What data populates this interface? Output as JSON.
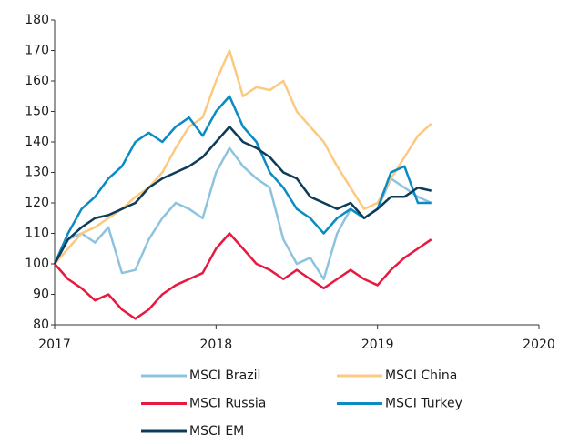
{
  "chart_data": {
    "type": "line",
    "x": [
      2017,
      2017.083,
      2017.167,
      2017.25,
      2017.333,
      2017.417,
      2017.5,
      2017.583,
      2017.667,
      2017.75,
      2017.833,
      2017.917,
      2018,
      2018.083,
      2018.167,
      2018.25,
      2018.333,
      2018.417,
      2018.5,
      2018.583,
      2018.667,
      2018.75,
      2018.833,
      2018.917,
      2019,
      2019.083,
      2019.167,
      2019.25,
      2019.333
    ],
    "series": [
      {
        "name": "MSCI Brazil",
        "color": "#8ec3e0",
        "values": [
          100,
          108,
          110,
          107,
          112,
          97,
          98,
          108,
          115,
          120,
          118,
          115,
          130,
          138,
          132,
          128,
          125,
          108,
          100,
          102,
          95,
          110,
          118,
          115,
          118,
          128,
          125,
          122,
          120
        ]
      },
      {
        "name": "MSCI China",
        "color": "#fcc980",
        "values": [
          100,
          105,
          110,
          112,
          115,
          118,
          122,
          125,
          130,
          138,
          145,
          148,
          160,
          170,
          155,
          158,
          157,
          160,
          150,
          145,
          140,
          132,
          125,
          118,
          120,
          128,
          135,
          142,
          146
        ]
      },
      {
        "name": "MSCI Russia",
        "color": "#e8193f",
        "values": [
          100,
          95,
          92,
          88,
          90,
          85,
          82,
          85,
          90,
          93,
          95,
          97,
          105,
          110,
          105,
          100,
          98,
          95,
          98,
          95,
          92,
          95,
          98,
          95,
          93,
          98,
          102,
          105,
          108
        ]
      },
      {
        "name": "MSCI Turkey",
        "color": "#0a8bc2",
        "values": [
          100,
          110,
          118,
          122,
          128,
          132,
          140,
          143,
          140,
          145,
          148,
          142,
          150,
          155,
          145,
          140,
          130,
          125,
          118,
          115,
          110,
          115,
          118,
          115,
          118,
          130,
          132,
          120,
          120
        ]
      },
      {
        "name": "MSCI EM",
        "color": "#0d3c5a",
        "values": [
          100,
          108,
          112,
          115,
          116,
          118,
          120,
          125,
          128,
          130,
          132,
          135,
          140,
          145,
          140,
          138,
          135,
          130,
          128,
          122,
          120,
          118,
          120,
          115,
          118,
          122,
          122,
          125,
          124
        ]
      }
    ],
    "xlim": [
      2017,
      2020
    ],
    "xticks": [
      2017,
      2018,
      2019,
      2020
    ],
    "ylim": [
      80,
      180
    ],
    "yticks": [
      80,
      90,
      100,
      110,
      120,
      130,
      140,
      150,
      160,
      170,
      180
    ],
    "grid": false,
    "legend": "bottom"
  }
}
